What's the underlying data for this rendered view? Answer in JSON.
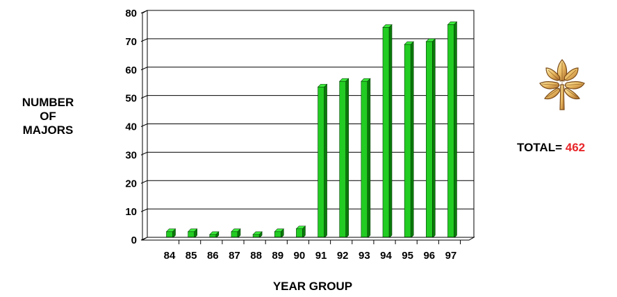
{
  "chart_data": {
    "type": "bar",
    "categories": [
      "84",
      "85",
      "86",
      "87",
      "88",
      "89",
      "90",
      "91",
      "92",
      "93",
      "94",
      "95",
      "96",
      "97"
    ],
    "values": [
      2,
      2,
      1,
      2,
      1,
      2,
      3,
      53,
      55,
      55,
      74,
      68,
      69,
      75
    ],
    "xlabel": "YEAR GROUP",
    "ylabel": [
      "NUMBER",
      "OF",
      "MAJORS"
    ],
    "ylim": [
      0,
      80
    ],
    "yticks": [
      0,
      10,
      20,
      30,
      40,
      50,
      60,
      70,
      80
    ],
    "grid": true,
    "bar_color": "#22cc22"
  },
  "total": {
    "label": "TOTAL=",
    "value": "462",
    "value_color": "#e8262a"
  },
  "badge": {
    "icon": "oak-leaf-icon"
  }
}
